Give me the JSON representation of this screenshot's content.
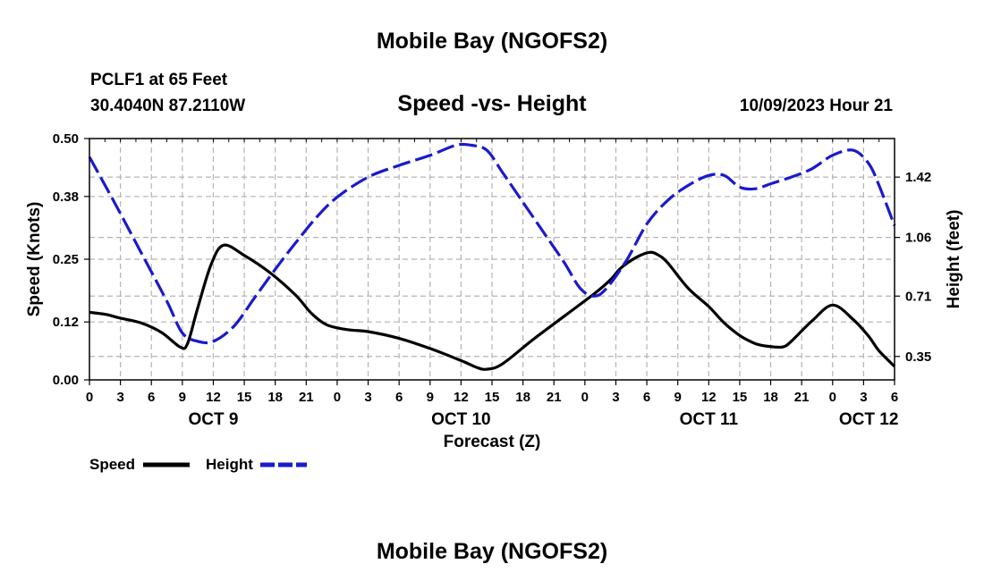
{
  "header": {
    "title": "Mobile Bay (NGOFS2)",
    "station": "PCLF1 at 65 Feet",
    "coords": "30.4040N  87.2110W",
    "subtitle": "Speed -vs- Height",
    "datetime": "10/09/2023 Hour 21"
  },
  "footer": {
    "title": "Mobile Bay (NGOFS2)"
  },
  "legend": {
    "speed_label": "Speed",
    "height_label": "Height"
  },
  "colors": {
    "speed": "#000000",
    "height": "#1a1acc",
    "grid": "#b4b4b4"
  },
  "chart_data": {
    "type": "line",
    "title": "Speed -vs- Height",
    "xlabel": "Forecast (Z)",
    "ylabel": "Speed (Knots)",
    "y2label": "Height (feet)",
    "xlim": [
      0,
      78
    ],
    "ylim": [
      0,
      0.5
    ],
    "y2lim": [
      0.21,
      1.65
    ],
    "x_ticks": [
      0,
      3,
      6,
      9,
      12,
      15,
      18,
      21,
      24,
      27,
      30,
      33,
      36,
      39,
      42,
      45,
      48,
      51,
      54,
      57,
      60,
      63,
      66,
      69,
      72,
      75,
      78
    ],
    "x_tick_labels": [
      "0",
      "3",
      "6",
      "9",
      "12",
      "15",
      "18",
      "21",
      "0",
      "3",
      "6",
      "9",
      "12",
      "15",
      "18",
      "21",
      "0",
      "3",
      "6",
      "9",
      "12",
      "15",
      "18",
      "21",
      "0",
      "3",
      "6"
    ],
    "y_ticks": [
      0,
      0.12,
      0.25,
      0.38,
      0.5
    ],
    "y_tick_labels": [
      "0.00",
      "0.12",
      "0.25",
      "0.38",
      "0.50"
    ],
    "y2_ticks": [
      0.35,
      0.71,
      1.06,
      1.42
    ],
    "y2_tick_labels": [
      "0.35",
      "0.71",
      "1.06",
      "1.42"
    ],
    "day_labels": [
      {
        "x": 12,
        "label": "OCT 9"
      },
      {
        "x": 36,
        "label": "OCT 10"
      },
      {
        "x": 60,
        "label": "OCT 11"
      },
      {
        "x": 75.5,
        "label": "OCT 12"
      }
    ],
    "series": [
      {
        "name": "Speed",
        "axis": "left",
        "style": "solid",
        "x": [
          0,
          1.5,
          3,
          5,
          7,
          8.8,
          9.5,
          10.5,
          11.8,
          13,
          15,
          17.5,
          20,
          21.5,
          23,
          25,
          27,
          30,
          33,
          36,
          37.5,
          38.5,
          40,
          43,
          46,
          49,
          50.5,
          51.5,
          53,
          54.2,
          55,
          56,
          58,
          60,
          61.5,
          63,
          64.2,
          65,
          66.5,
          67.3,
          68,
          70,
          72,
          74,
          75.5,
          76.5,
          78
        ],
        "values": [
          0.14,
          0.136,
          0.128,
          0.118,
          0.098,
          0.068,
          0.075,
          0.15,
          0.24,
          0.279,
          0.258,
          0.222,
          0.175,
          0.138,
          0.114,
          0.104,
          0.1,
          0.086,
          0.065,
          0.04,
          0.026,
          0.022,
          0.033,
          0.084,
          0.132,
          0.18,
          0.208,
          0.232,
          0.254,
          0.264,
          0.26,
          0.243,
          0.19,
          0.152,
          0.118,
          0.092,
          0.078,
          0.072,
          0.068,
          0.069,
          0.08,
          0.122,
          0.155,
          0.125,
          0.09,
          0.06,
          0.028
        ]
      },
      {
        "name": "Height",
        "axis": "right",
        "style": "dashed",
        "x": [
          0,
          2.5,
          5,
          7.5,
          9,
          10.5,
          12,
          14,
          16,
          18,
          20,
          22,
          24,
          27,
          30,
          33,
          35.5,
          37,
          38.5,
          40,
          42,
          44,
          46,
          47.5,
          48.8,
          50,
          52,
          54,
          56,
          58,
          60,
          61.5,
          63,
          64.5,
          66,
          68,
          70,
          72,
          74,
          75.5,
          76.5,
          78
        ],
        "values": [
          1.54,
          1.26,
          0.97,
          0.68,
          0.49,
          0.44,
          0.44,
          0.53,
          0.7,
          0.87,
          1.03,
          1.18,
          1.3,
          1.42,
          1.49,
          1.55,
          1.61,
          1.61,
          1.58,
          1.45,
          1.27,
          1.09,
          0.91,
          0.76,
          0.71,
          0.75,
          0.92,
          1.14,
          1.28,
          1.37,
          1.43,
          1.43,
          1.36,
          1.35,
          1.38,
          1.42,
          1.47,
          1.55,
          1.58,
          1.5,
          1.37,
          1.13
        ]
      }
    ]
  }
}
